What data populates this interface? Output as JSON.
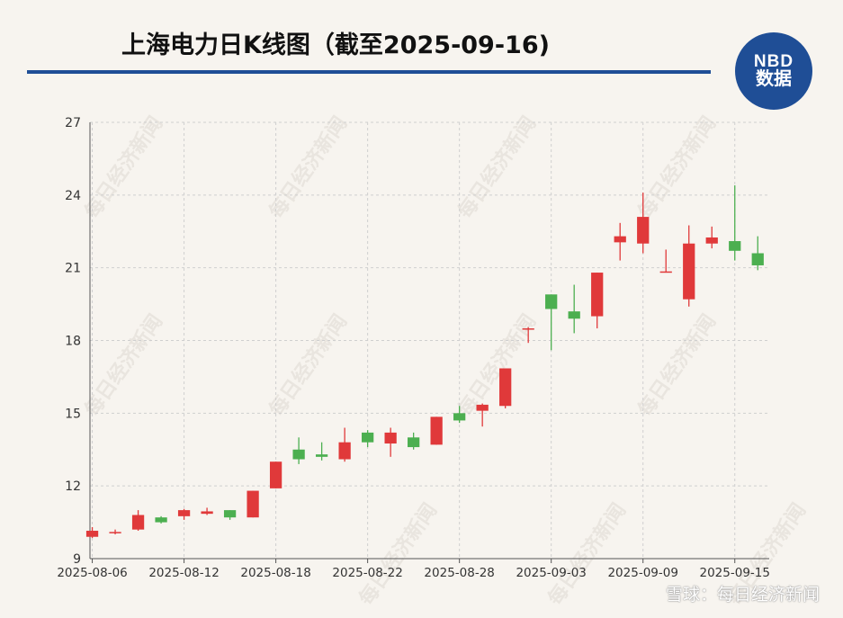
{
  "header": {
    "title": "上海电力日K线图（截至2025-09-16)",
    "logo_line1": "NBD",
    "logo_line2": "数据"
  },
  "footer": {
    "text": "雪球：每日经济新闻"
  },
  "watermark": {
    "text": "每日经济新闻"
  },
  "colors": {
    "up": "#e0393a",
    "down": "#4caf50",
    "rule": "#1f4e96",
    "grid": "#cfcfcf"
  },
  "chart_data": {
    "type": "candlestick",
    "title": "上海电力日K线图（截至2025-09-16)",
    "ylim": [
      9,
      27
    ],
    "yticks": [
      9,
      12,
      15,
      18,
      21,
      24,
      27
    ],
    "xtick_labels": [
      "2025-08-06",
      "2025-08-12",
      "2025-08-18",
      "2025-08-22",
      "2025-08-28",
      "2025-09-03",
      "2025-09-09",
      "2025-09-15"
    ],
    "xtick_index": [
      0,
      4,
      8,
      12,
      16,
      20,
      24,
      28
    ],
    "grid": true,
    "legend": "none",
    "candles": [
      {
        "date": "2025-08-06",
        "open": 9.9,
        "close": 10.15,
        "high": 10.3,
        "low": 9.85
      },
      {
        "date": "2025-08-07",
        "open": 10.1,
        "close": 10.1,
        "high": 10.2,
        "low": 10.0
      },
      {
        "date": "2025-08-08",
        "open": 10.2,
        "close": 10.8,
        "high": 11.0,
        "low": 10.15
      },
      {
        "date": "2025-08-11",
        "open": 10.7,
        "close": 10.5,
        "high": 10.75,
        "low": 10.45
      },
      {
        "date": "2025-08-12",
        "open": 10.75,
        "close": 11.0,
        "high": 11.05,
        "low": 10.6
      },
      {
        "date": "2025-08-13",
        "open": 10.85,
        "close": 10.95,
        "high": 11.1,
        "low": 10.8
      },
      {
        "date": "2025-08-14",
        "open": 11.0,
        "close": 10.7,
        "high": 11.0,
        "low": 10.6
      },
      {
        "date": "2025-08-15",
        "open": 10.7,
        "close": 11.8,
        "high": 11.8,
        "low": 10.7
      },
      {
        "date": "2025-08-18",
        "open": 11.9,
        "close": 13.0,
        "high": 13.0,
        "low": 11.9
      },
      {
        "date": "2025-08-19",
        "open": 13.5,
        "close": 13.1,
        "high": 14.0,
        "low": 12.9
      },
      {
        "date": "2025-08-20",
        "open": 13.3,
        "close": 13.2,
        "high": 13.8,
        "low": 13.05
      },
      {
        "date": "2025-08-21",
        "open": 13.1,
        "close": 13.8,
        "high": 14.4,
        "low": 13.0
      },
      {
        "date": "2025-08-22",
        "open": 14.2,
        "close": 13.8,
        "high": 14.3,
        "low": 13.6
      },
      {
        "date": "2025-08-25",
        "open": 13.75,
        "close": 14.2,
        "high": 14.4,
        "low": 13.2
      },
      {
        "date": "2025-08-26",
        "open": 14.0,
        "close": 13.6,
        "high": 14.2,
        "low": 13.5
      },
      {
        "date": "2025-08-27",
        "open": 13.7,
        "close": 14.85,
        "high": 14.85,
        "low": 13.7
      },
      {
        "date": "2025-08-28",
        "open": 15.0,
        "close": 14.7,
        "high": 15.3,
        "low": 14.6
      },
      {
        "date": "2025-08-29",
        "open": 15.1,
        "close": 15.35,
        "high": 15.4,
        "low": 14.45
      },
      {
        "date": "2025-09-01",
        "open": 15.3,
        "close": 16.85,
        "high": 16.85,
        "low": 15.2
      },
      {
        "date": "2025-09-02",
        "open": 18.5,
        "close": 18.5,
        "high": 18.55,
        "low": 17.9
      },
      {
        "date": "2025-09-03",
        "open": 19.9,
        "close": 19.3,
        "high": 19.9,
        "low": 17.6
      },
      {
        "date": "2025-09-04",
        "open": 19.2,
        "close": 18.9,
        "high": 20.3,
        "low": 18.3
      },
      {
        "date": "2025-09-05",
        "open": 19.0,
        "close": 20.8,
        "high": 20.8,
        "low": 18.5
      },
      {
        "date": "2025-09-08",
        "open": 22.05,
        "close": 22.3,
        "high": 22.85,
        "low": 21.3
      },
      {
        "date": "2025-09-09",
        "open": 22.0,
        "close": 23.1,
        "high": 24.1,
        "low": 21.6
      },
      {
        "date": "2025-09-10",
        "open": 20.85,
        "close": 20.85,
        "high": 21.75,
        "low": 20.8
      },
      {
        "date": "2025-09-11",
        "open": 19.7,
        "close": 22.0,
        "high": 22.75,
        "low": 19.4
      },
      {
        "date": "2025-09-12",
        "open": 22.0,
        "close": 22.25,
        "high": 22.7,
        "low": 21.8
      },
      {
        "date": "2025-09-15",
        "open": 22.1,
        "close": 21.7,
        "high": 24.4,
        "low": 21.3
      },
      {
        "date": "2025-09-16",
        "open": 21.6,
        "close": 21.1,
        "high": 22.3,
        "low": 20.9
      }
    ]
  }
}
